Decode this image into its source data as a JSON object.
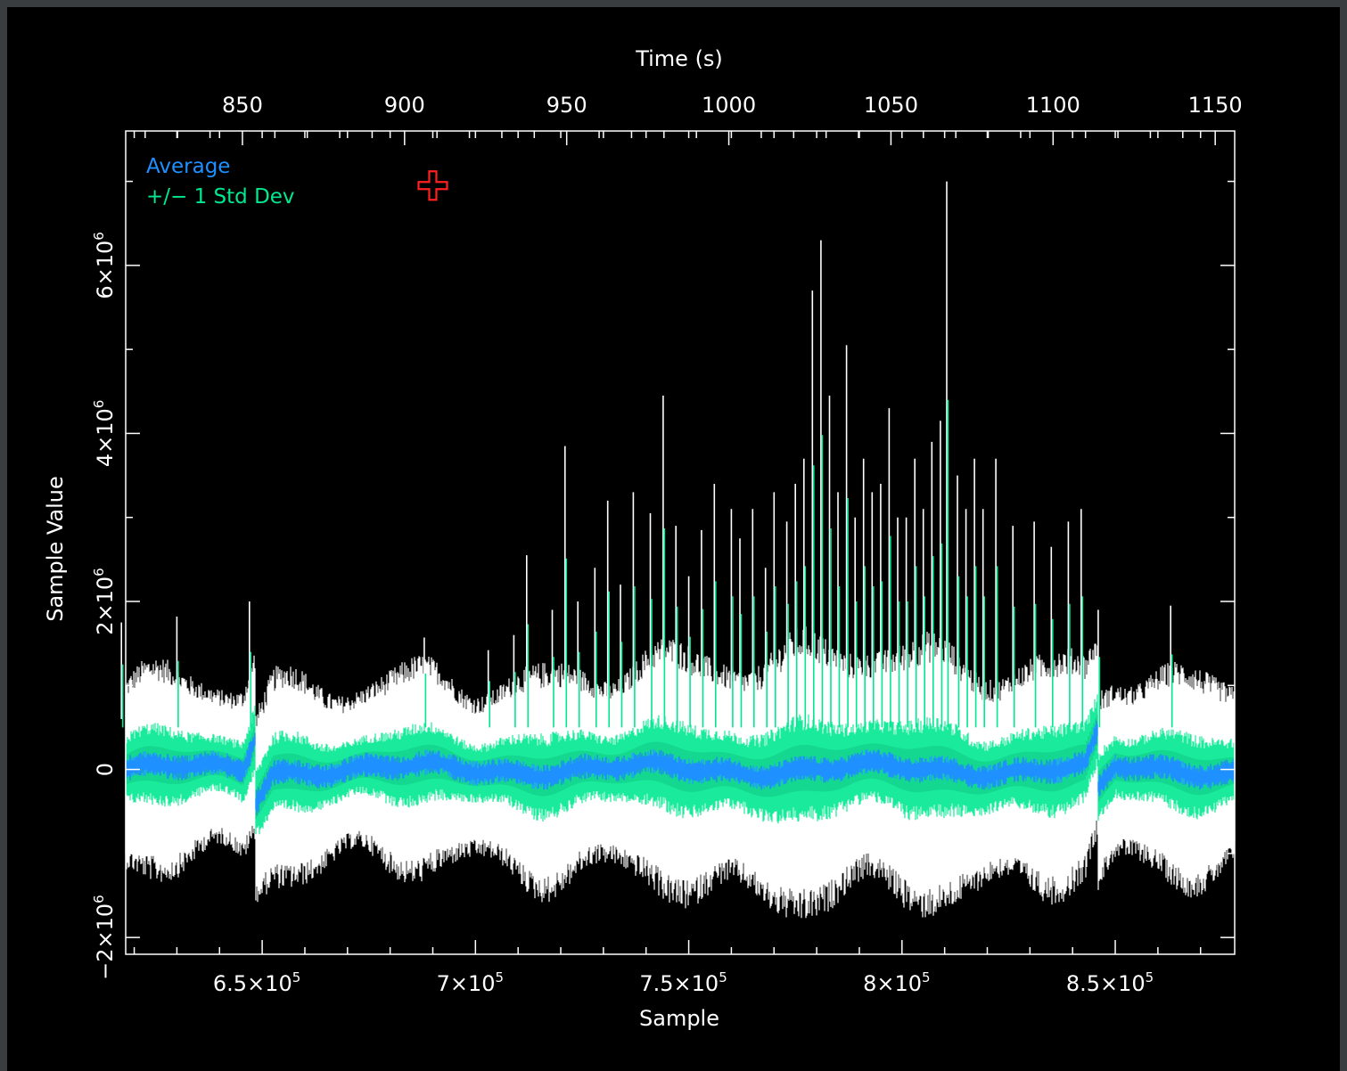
{
  "chart_data": {
    "type": "line",
    "xlabel": "Sample",
    "x2label": "Time (s)",
    "ylabel": "Sample Value",
    "xlim": [
      618000,
      878000
    ],
    "x2lim": [
      814,
      1156
    ],
    "ylim": [
      -2200000,
      7600000
    ],
    "x_ticks": [
      {
        "value": 650000,
        "mant": "6.5×10",
        "exp": "5"
      },
      {
        "value": 700000,
        "mant": "7×10",
        "exp": "5"
      },
      {
        "value": 750000,
        "mant": "7.5×10",
        "exp": "5"
      },
      {
        "value": 800000,
        "mant": "8×10",
        "exp": "5"
      },
      {
        "value": 850000,
        "mant": "8.5×10",
        "exp": "5"
      }
    ],
    "x2_ticks": [
      "850",
      "900",
      "950",
      "1000",
      "1050",
      "1100",
      "1150"
    ],
    "y_ticks": [
      {
        "value": -2000000,
        "mant": "−2×10",
        "exp": "6"
      },
      {
        "value": 0,
        "mant": "0",
        "exp": ""
      },
      {
        "value": 2000000,
        "mant": "2×10",
        "exp": "6"
      },
      {
        "value": 4000000,
        "mant": "4×10",
        "exp": "6"
      },
      {
        "value": 6000000,
        "mant": "6×10",
        "exp": "6"
      }
    ],
    "legend": [
      {
        "label": "Average",
        "color": "#1e90ff"
      },
      {
        "label": "+/− 1 Std Dev",
        "color": "#00e890"
      }
    ],
    "series": [
      {
        "name": "Average",
        "color": "#1e90ff"
      },
      {
        "name": "+/− 1 Std Dev",
        "color": "#00e890"
      }
    ],
    "raw_color": "#ffffff",
    "grid": false,
    "legend_position": "top-left",
    "cursor_marker": {
      "x": 690000,
      "y": 6950000,
      "color": "#ff2020"
    },
    "spikes": [
      {
        "x": 617000,
        "y": 1750000
      },
      {
        "x": 630000,
        "y": 1820000
      },
      {
        "x": 647000,
        "y": 2000000
      },
      {
        "x": 688000,
        "y": 1570000
      },
      {
        "x": 703000,
        "y": 1420000
      },
      {
        "x": 709000,
        "y": 1600000
      },
      {
        "x": 712000,
        "y": 2550000
      },
      {
        "x": 718000,
        "y": 1900000
      },
      {
        "x": 721000,
        "y": 3850000
      },
      {
        "x": 724000,
        "y": 2000000
      },
      {
        "x": 728000,
        "y": 2400000
      },
      {
        "x": 731000,
        "y": 3200000
      },
      {
        "x": 734000,
        "y": 2200000
      },
      {
        "x": 737000,
        "y": 3300000
      },
      {
        "x": 741000,
        "y": 3050000
      },
      {
        "x": 744000,
        "y": 4450000
      },
      {
        "x": 747000,
        "y": 2900000
      },
      {
        "x": 750000,
        "y": 2300000
      },
      {
        "x": 753000,
        "y": 2850000
      },
      {
        "x": 756000,
        "y": 3400000
      },
      {
        "x": 760000,
        "y": 3100000
      },
      {
        "x": 762000,
        "y": 2750000
      },
      {
        "x": 765000,
        "y": 3100000
      },
      {
        "x": 768000,
        "y": 2400000
      },
      {
        "x": 770000,
        "y": 3300000
      },
      {
        "x": 773000,
        "y": 2950000
      },
      {
        "x": 775000,
        "y": 3400000
      },
      {
        "x": 777000,
        "y": 3700000
      },
      {
        "x": 779000,
        "y": 5700000
      },
      {
        "x": 781000,
        "y": 6300000
      },
      {
        "x": 783000,
        "y": 4450000
      },
      {
        "x": 785000,
        "y": 3300000
      },
      {
        "x": 787000,
        "y": 5050000
      },
      {
        "x": 789000,
        "y": 3000000
      },
      {
        "x": 791000,
        "y": 3700000
      },
      {
        "x": 793000,
        "y": 3300000
      },
      {
        "x": 795000,
        "y": 3400000
      },
      {
        "x": 797000,
        "y": 4300000
      },
      {
        "x": 799000,
        "y": 3000000
      },
      {
        "x": 801000,
        "y": 3000000
      },
      {
        "x": 803000,
        "y": 3700000
      },
      {
        "x": 805000,
        "y": 3100000
      },
      {
        "x": 807000,
        "y": 3900000
      },
      {
        "x": 809000,
        "y": 4150000
      },
      {
        "x": 810500,
        "y": 7000000
      },
      {
        "x": 813000,
        "y": 3500000
      },
      {
        "x": 815000,
        "y": 3100000
      },
      {
        "x": 817000,
        "y": 3700000
      },
      {
        "x": 819000,
        "y": 3100000
      },
      {
        "x": 822000,
        "y": 3700000
      },
      {
        "x": 826000,
        "y": 2900000
      },
      {
        "x": 831000,
        "y": 2950000
      },
      {
        "x": 835000,
        "y": 2650000
      },
      {
        "x": 839000,
        "y": 2950000
      },
      {
        "x": 842000,
        "y": 3100000
      },
      {
        "x": 846000,
        "y": 1900000
      },
      {
        "x": 863000,
        "y": 1950000
      }
    ]
  }
}
